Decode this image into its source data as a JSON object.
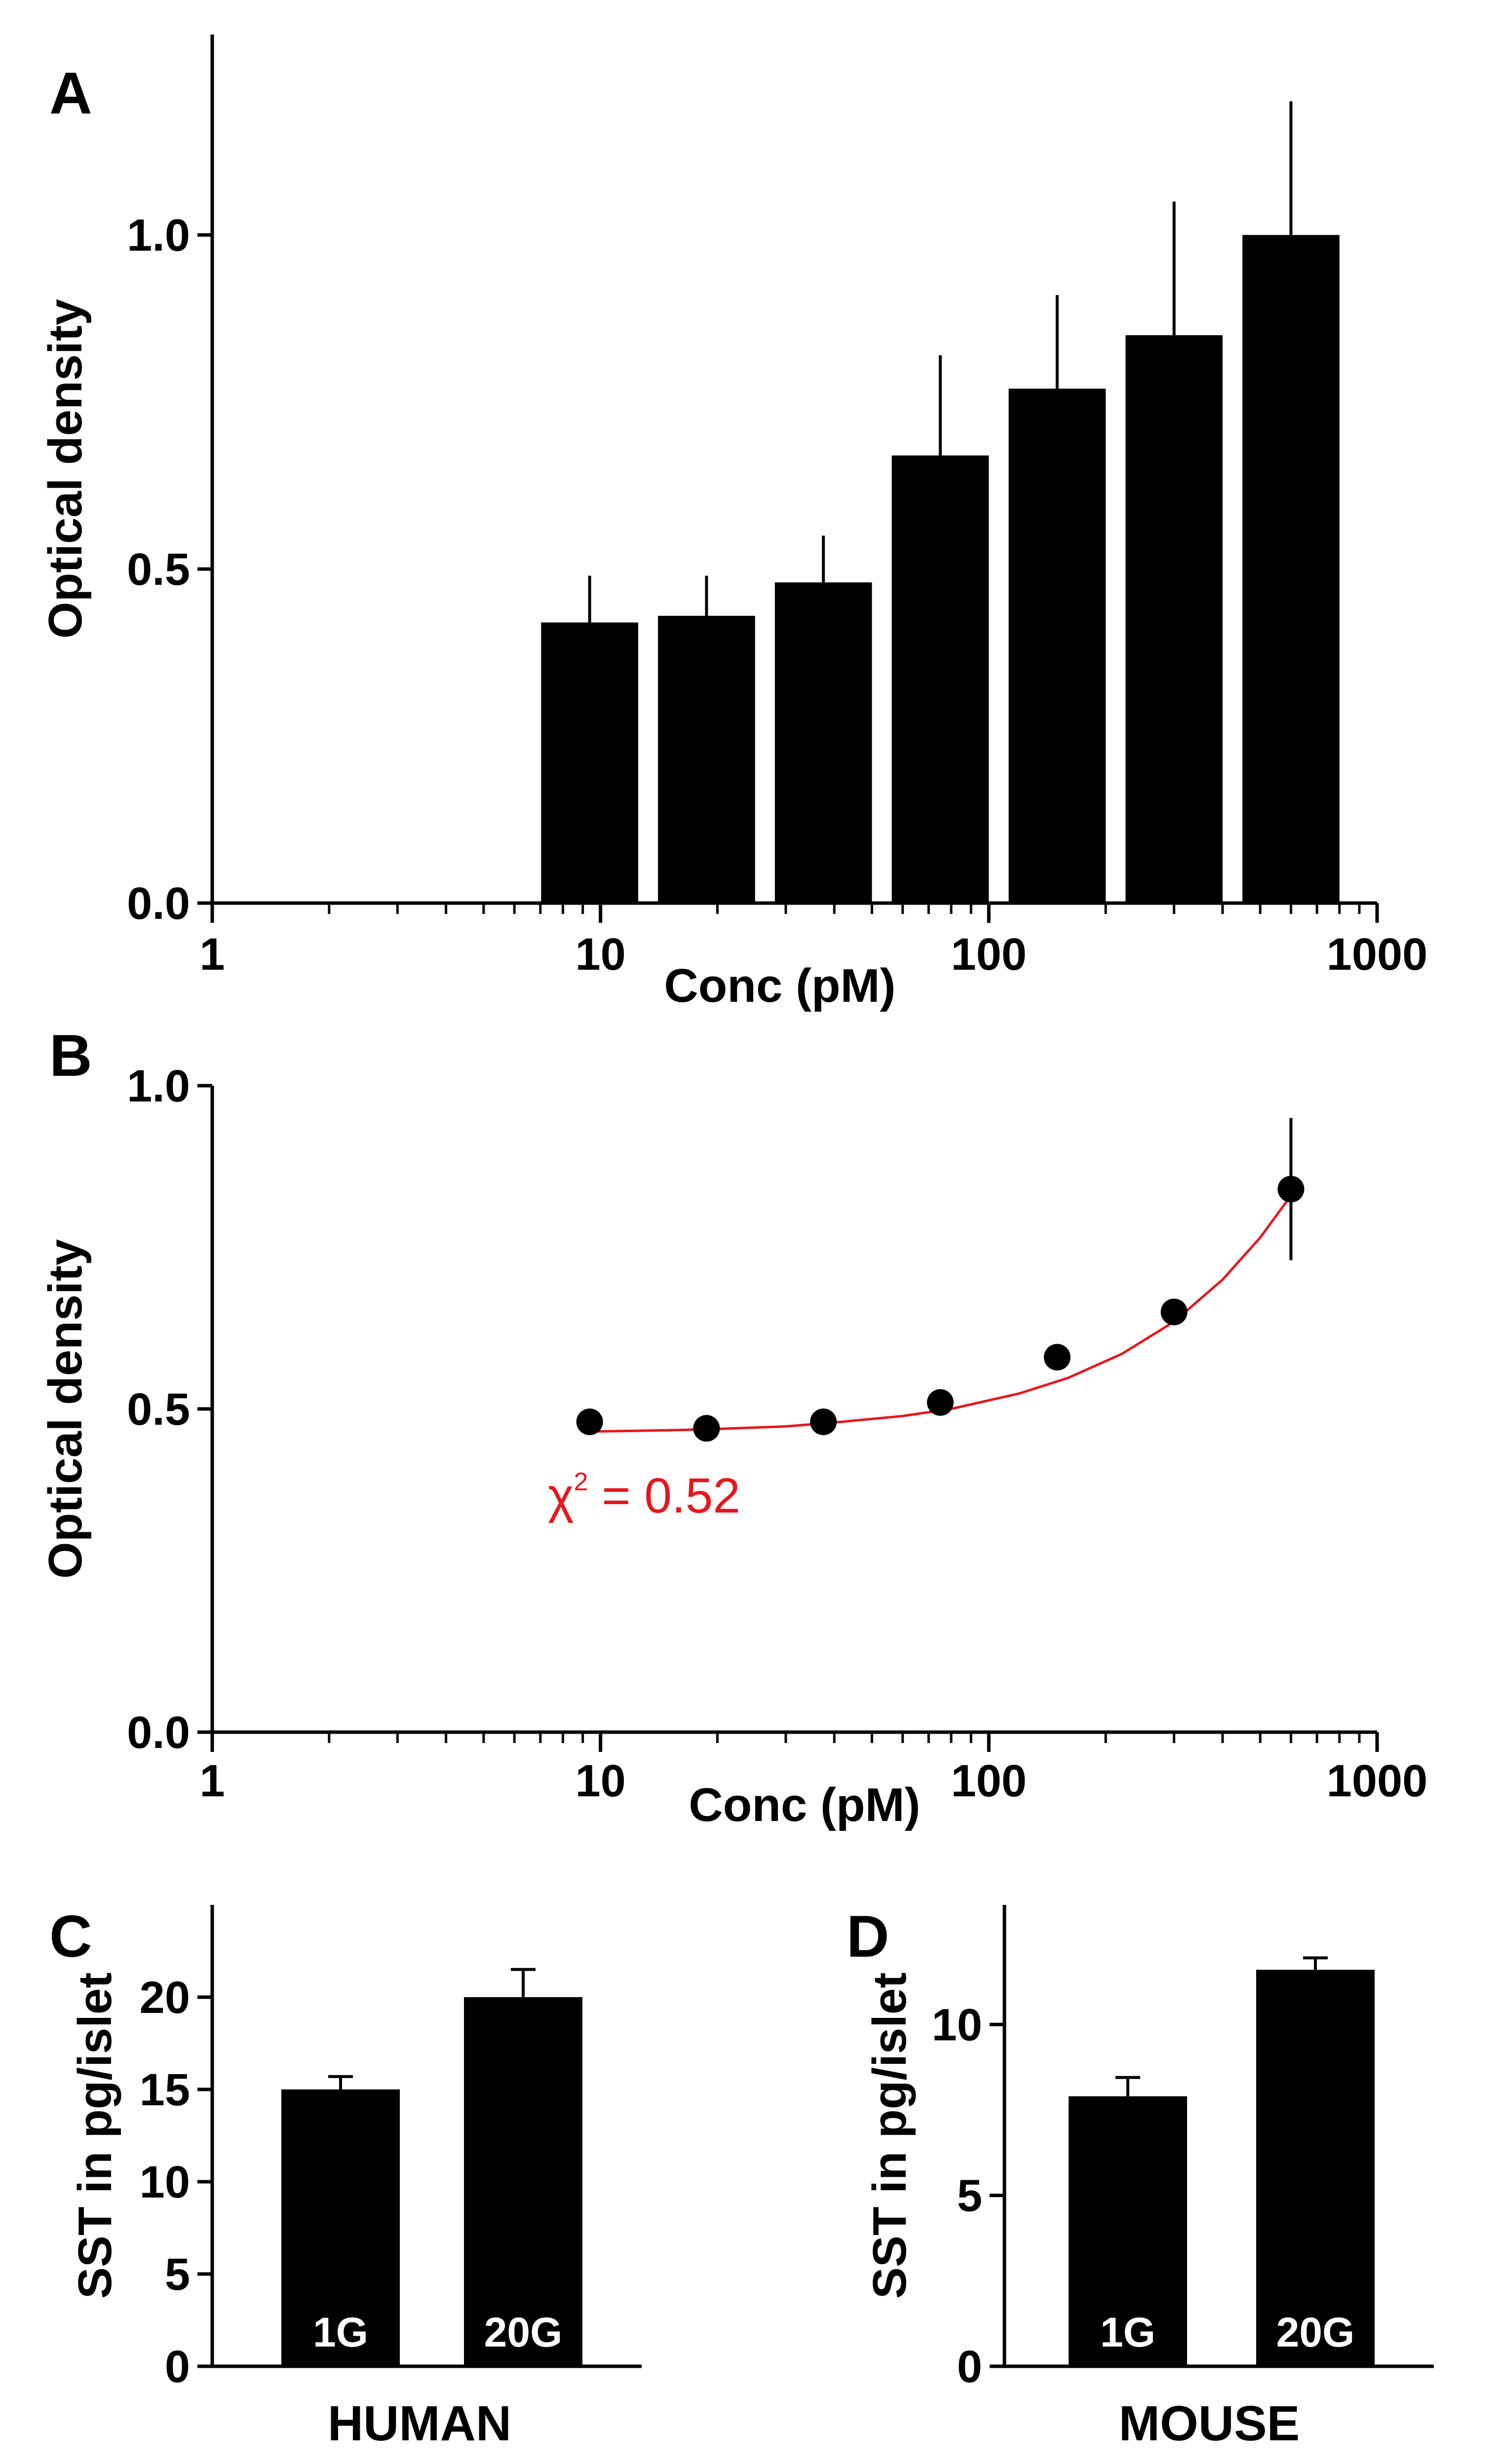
{
  "chart_data": [
    {
      "panel": "A",
      "type": "bar",
      "xscale": "log",
      "xlabel": "Conc (pM)",
      "ylabel": "Optical density",
      "xlim": [
        1,
        1000
      ],
      "ylim": [
        0,
        1.3
      ],
      "x_ticks": [
        1,
        10,
        100,
        1000
      ],
      "x_tick_labels": [
        "1",
        "10",
        "100",
        "1000"
      ],
      "y_ticks": [
        0,
        0.5,
        1.0
      ],
      "y_tick_labels": [
        "0.0",
        "0.5",
        "1.0"
      ],
      "x": [
        9.375,
        18.75,
        37.5,
        75,
        150,
        300,
        600
      ],
      "values": [
        0.42,
        0.43,
        0.48,
        0.67,
        0.77,
        0.85,
        1.0
      ],
      "errors": [
        0.07,
        0.06,
        0.07,
        0.15,
        0.14,
        0.2,
        0.2
      ]
    },
    {
      "panel": "B",
      "type": "scatter",
      "xscale": "log",
      "xlabel": "Conc (pM)",
      "ylabel": "Optical density",
      "xlim": [
        1,
        1000
      ],
      "ylim": [
        0,
        1.0
      ],
      "x_ticks": [
        1,
        10,
        100,
        1000
      ],
      "x_tick_labels": [
        "1",
        "10",
        "100",
        "1000"
      ],
      "y_ticks": [
        0,
        0.5,
        1.0
      ],
      "y_tick_labels": [
        "0.0",
        "0.5",
        "1.0"
      ],
      "x": [
        9.375,
        18.75,
        37.5,
        75,
        150,
        300,
        600
      ],
      "values": [
        0.48,
        0.47,
        0.48,
        0.51,
        0.58,
        0.65,
        0.84
      ],
      "errors": [
        0,
        0,
        0.01,
        0,
        0,
        0,
        0.11
      ],
      "fit": {
        "color": "#e8161b",
        "x": [
          9.5,
          15,
          20,
          30,
          40,
          60,
          80,
          120,
          160,
          220,
          300,
          400,
          500,
          600
        ],
        "y": [
          0.465,
          0.467,
          0.469,
          0.473,
          0.479,
          0.489,
          0.5,
          0.524,
          0.548,
          0.585,
          0.635,
          0.7,
          0.765,
          0.83
        ],
        "label_symbol": "χ",
        "label_superscript": "2",
        "label_value": "= 0.52"
      }
    },
    {
      "panel": "C",
      "type": "bar",
      "ylabel": "SST in pg/islet",
      "xlabel": "HUMAN",
      "categories": [
        "1G",
        "20G"
      ],
      "values": [
        15,
        20
      ],
      "errors": [
        0.7,
        1.5
      ],
      "ylim": [
        0,
        25
      ],
      "y_ticks": [
        0,
        5,
        10,
        15,
        20
      ],
      "y_tick_labels": [
        "0",
        "5",
        "10",
        "15",
        "20"
      ]
    },
    {
      "panel": "D",
      "type": "bar",
      "ylabel": "SST in pg/islet",
      "xlabel": "MOUSE",
      "categories": [
        "1G",
        "20G"
      ],
      "values": [
        7.9,
        11.6
      ],
      "errors": [
        0.55,
        0.35
      ],
      "ylim": [
        0,
        13.5
      ],
      "y_ticks": [
        0,
        5,
        10
      ],
      "y_tick_labels": [
        "0",
        "5",
        "10"
      ]
    }
  ]
}
